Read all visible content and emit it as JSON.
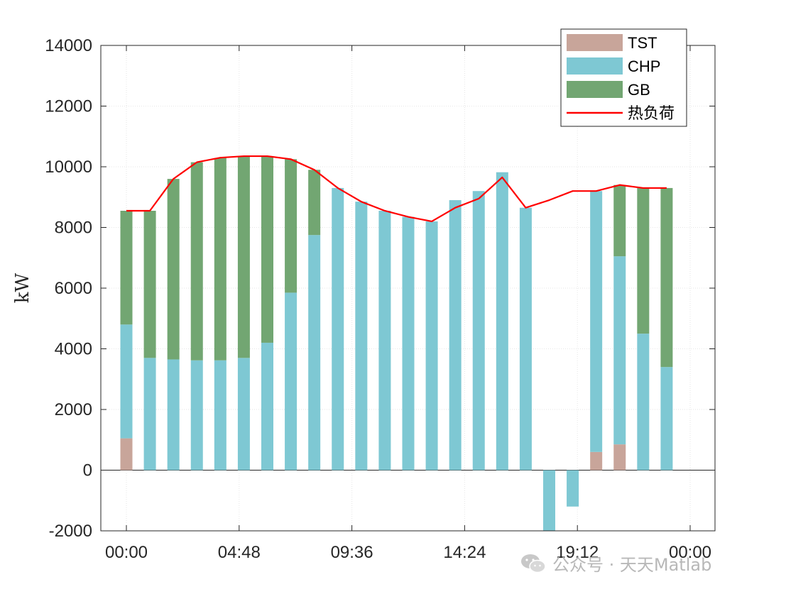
{
  "chart_data": {
    "type": "bar",
    "stacked": true,
    "x_tick_labels": [
      "00:00",
      "04:48",
      "09:36",
      "14:24",
      "19:12",
      "00:00"
    ],
    "ylabel": "kW",
    "ylim": [
      -2000,
      14000
    ],
    "yticks": [
      -2000,
      0,
      2000,
      4000,
      6000,
      8000,
      10000,
      12000,
      14000
    ],
    "grid": true,
    "legend_position": "top-right",
    "series": [
      {
        "name": "TST",
        "kind": "bar",
        "color": "#c8a59a",
        "values": [
          1050,
          0,
          0,
          0,
          0,
          0,
          0,
          0,
          0,
          0,
          0,
          0,
          0,
          0,
          0,
          0,
          0,
          0,
          0,
          0,
          600,
          850,
          0,
          0
        ]
      },
      {
        "name": "CHP",
        "kind": "bar",
        "color": "#7ec8d3",
        "values": [
          3750,
          3700,
          3650,
          3620,
          3620,
          3700,
          4200,
          5850,
          7750,
          9300,
          8850,
          8550,
          8350,
          8200,
          8900,
          9200,
          9820,
          8650,
          -2000,
          -1200,
          8600,
          6200,
          4500,
          3400
        ]
      },
      {
        "name": "GB",
        "kind": "bar",
        "color": "#72a672",
        "values": [
          3750,
          4850,
          5950,
          6530,
          6670,
          6640,
          6150,
          4400,
          2150,
          0,
          0,
          0,
          0,
          0,
          0,
          0,
          0,
          0,
          0,
          0,
          0,
          2350,
          4800,
          5900
        ]
      },
      {
        "name": "热负荷",
        "kind": "line",
        "color": "#ff0000",
        "values": [
          8550,
          8550,
          9600,
          10150,
          10300,
          10350,
          10350,
          10250,
          9900,
          9300,
          8850,
          8550,
          8350,
          8200,
          8650,
          8950,
          9650,
          8650,
          8900,
          9200,
          9200,
          9400,
          9300,
          9300
        ]
      }
    ]
  },
  "watermark": {
    "icon": "wechat-icon",
    "text": "公众号 · 天天Matlab"
  }
}
